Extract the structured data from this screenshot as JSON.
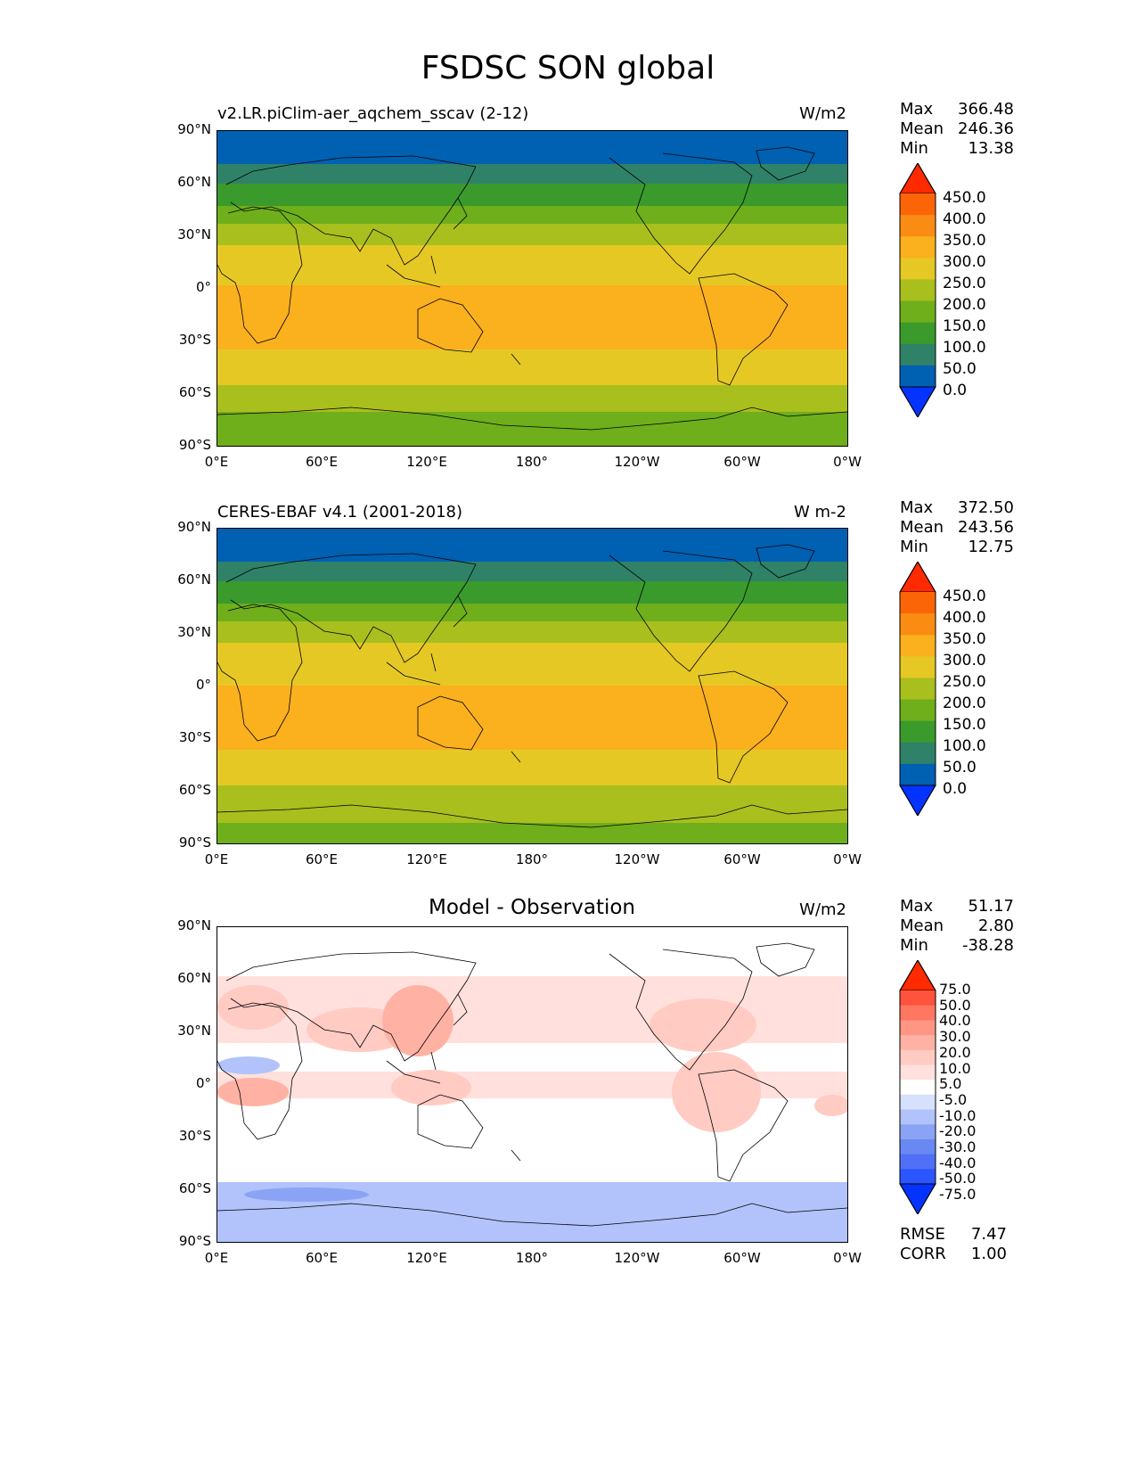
{
  "main_title": "FSDSC SON global",
  "x_ticks": [
    "0°E",
    "60°E",
    "120°E",
    "180°",
    "120°W",
    "60°W",
    "0°W"
  ],
  "y_ticks": [
    "90°N",
    "60°N",
    "30°N",
    "0°",
    "30°S",
    "60°S",
    "90°S"
  ],
  "colors": {
    "abs_levels": [
      "#0433ff",
      "#0060b2",
      "#2f8267",
      "#3a9a2c",
      "#6eaf1b",
      "#a8bf1e",
      "#e6c825",
      "#fbb01e",
      "#fb8c13",
      "#fb6508",
      "#ff2a00"
    ],
    "diff_levels": [
      "#0433ff",
      "#2b55ff",
      "#4f70f6",
      "#6a88f2",
      "#8ba3f4",
      "#b1c3fa",
      "#d6e1fd",
      "#ffffff",
      "#ffe0dc",
      "#ffcbc3",
      "#ffb2a4",
      "#ff9583",
      "#ff7661",
      "#ff533d",
      "#ff2a00"
    ]
  },
  "panels": [
    {
      "title": "v2.LR.piClim-aer_aqchem_sscav (2-12)",
      "units": "W/m2",
      "stats": [
        {
          "k": "Max",
          "v": "366.48"
        },
        {
          "k": "Mean",
          "v": "246.36"
        },
        {
          "k": "Min",
          "v": "13.38"
        }
      ],
      "colorbar_labels": [
        "450.0",
        "400.0",
        "350.0",
        "300.0",
        "250.0",
        "200.0",
        "150.0",
        "100.0",
        "50.0",
        "0.0"
      ]
    },
    {
      "title": "CERES-EBAF v4.1 (2001-2018)",
      "units": "W m-2",
      "stats": [
        {
          "k": "Max",
          "v": "372.50"
        },
        {
          "k": "Mean",
          "v": "243.56"
        },
        {
          "k": "Min",
          "v": "12.75"
        }
      ],
      "colorbar_labels": [
        "450.0",
        "400.0",
        "350.0",
        "300.0",
        "250.0",
        "200.0",
        "150.0",
        "100.0",
        "50.0",
        "0.0"
      ]
    },
    {
      "title": "Model - Observation",
      "units": "W/m2",
      "stats": [
        {
          "k": "Max",
          "v": "51.17"
        },
        {
          "k": "Mean",
          "v": "2.80"
        },
        {
          "k": "Min",
          "v": "-38.28"
        }
      ],
      "colorbar_labels": [
        "75.0",
        "50.0",
        "40.0",
        "30.0",
        "20.0",
        "10.0",
        "5.0",
        "-5.0",
        "-10.0",
        "-20.0",
        "-30.0",
        "-40.0",
        "-50.0",
        "-75.0"
      ],
      "extra_stats": [
        {
          "k": "RMSE",
          "v": "7.47"
        },
        {
          "k": "CORR",
          "v": "1.00"
        }
      ]
    }
  ]
}
